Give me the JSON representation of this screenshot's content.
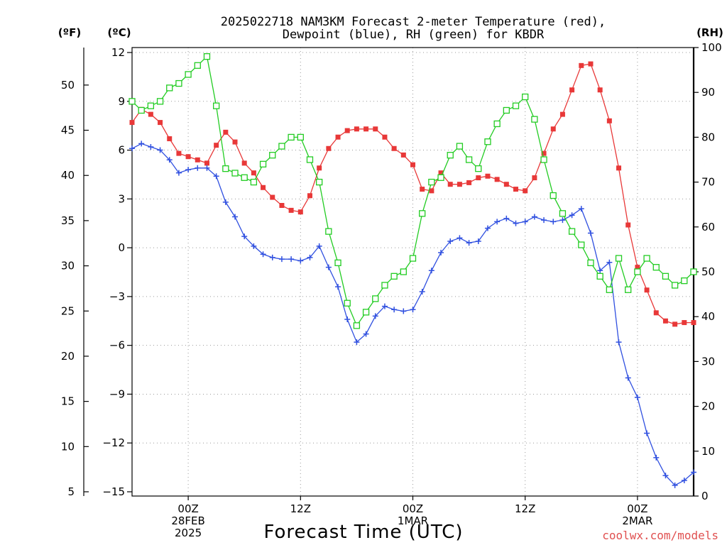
{
  "chart_data": {
    "type": "line",
    "title_lines": [
      "2025022718 NAM3KM Forecast 2-meter Temperature (red),",
      "Dewpoint (blue), RH (green) for KBDR"
    ],
    "xlabel": "Forecast Time (UTC)",
    "left_axis_unit_f": "(ºF)",
    "left_axis_unit_c": "(ºC)",
    "right_axis_unit": "(RH)",
    "credit": "coolwx.com/models",
    "x_hours": [
      0,
      1,
      2,
      3,
      4,
      5,
      6,
      7,
      8,
      9,
      10,
      11,
      12,
      13,
      14,
      15,
      16,
      17,
      18,
      19,
      20,
      21,
      22,
      23,
      24,
      25,
      26,
      27,
      28,
      29,
      30,
      31,
      32,
      33,
      34,
      35,
      36,
      37,
      38,
      39,
      40,
      41,
      42,
      43,
      44,
      45,
      46,
      47,
      48,
      49,
      50,
      51,
      52,
      53,
      54,
      55,
      56,
      57,
      58,
      59,
      60
    ],
    "x_range": [
      0,
      60
    ],
    "x_ticks": [
      {
        "hour": 6,
        "lines": [
          "00Z",
          "28FEB",
          "2025"
        ]
      },
      {
        "hour": 18,
        "lines": [
          "12Z"
        ]
      },
      {
        "hour": 30,
        "lines": [
          "00Z",
          "1MAR"
        ]
      },
      {
        "hour": 42,
        "lines": [
          "12Z"
        ]
      },
      {
        "hour": 54,
        "lines": [
          "00Z",
          "2MAR"
        ]
      }
    ],
    "celsius_range": [
      -15,
      12
    ],
    "celsius_ticks": [
      "12",
      "9",
      "6",
      "3",
      "0",
      "−3",
      "−6",
      "−9",
      "−12",
      "−15"
    ],
    "celsius_tick_values": [
      12,
      9,
      6,
      3,
      0,
      -3,
      -6,
      -9,
      -12,
      -15
    ],
    "fahrenheit_ticks": [
      "50",
      "45",
      "40",
      "35",
      "30",
      "25",
      "20",
      "15",
      "10",
      "5"
    ],
    "fahrenheit_tick_values": [
      50,
      45,
      40,
      35,
      30,
      25,
      20,
      15,
      10,
      5
    ],
    "rh_range": [
      0,
      100
    ],
    "rh_ticks": [
      "100",
      "90",
      "80",
      "70",
      "60",
      "50",
      "40",
      "30",
      "20",
      "10",
      "0"
    ],
    "rh_tick_values": [
      100,
      90,
      80,
      70,
      60,
      50,
      40,
      30,
      20,
      10,
      0
    ],
    "grid": true,
    "series": [
      {
        "name": "2-meter Temperature",
        "axis": "celsius",
        "color": "#e83838",
        "marker": "filled-square",
        "values": [
          7.7,
          8.5,
          8.2,
          7.7,
          6.7,
          5.8,
          5.6,
          5.4,
          5.2,
          6.3,
          7.1,
          6.5,
          5.2,
          4.6,
          3.7,
          3.1,
          2.6,
          2.3,
          2.2,
          3.2,
          4.9,
          6.1,
          6.8,
          7.2,
          7.3,
          7.3,
          7.3,
          6.8,
          6.1,
          5.7,
          5.1,
          3.6,
          3.5,
          4.6,
          3.9,
          3.9,
          4.0,
          4.3,
          4.4,
          4.2,
          3.9,
          3.6,
          3.5,
          4.3,
          5.8,
          7.3,
          8.2,
          9.7,
          11.2,
          11.3,
          9.7,
          7.8,
          4.9,
          1.4,
          -1.2,
          -2.6,
          -4.0,
          -4.5,
          -4.7,
          -4.6,
          -4.6
        ]
      },
      {
        "name": "Dewpoint",
        "axis": "celsius",
        "color": "#3050e0",
        "marker": "plus",
        "values": [
          6.1,
          6.4,
          6.2,
          6.0,
          5.4,
          4.6,
          4.8,
          4.9,
          4.9,
          4.4,
          2.8,
          1.9,
          0.7,
          0.1,
          -0.4,
          -0.6,
          -0.7,
          -0.7,
          -0.8,
          -0.6,
          0.1,
          -1.2,
          -2.4,
          -4.4,
          -5.8,
          -5.3,
          -4.2,
          -3.6,
          -3.8,
          -3.9,
          -3.8,
          -2.7,
          -1.4,
          -0.3,
          0.4,
          0.6,
          0.3,
          0.4,
          1.2,
          1.6,
          1.8,
          1.5,
          1.6,
          1.9,
          1.7,
          1.6,
          1.7,
          2.0,
          2.4,
          0.9,
          -1.4,
          -0.9,
          -5.8,
          -8.0,
          -9.2,
          -11.4,
          -12.9,
          -14.0,
          -14.6,
          -14.3,
          -13.8
        ]
      },
      {
        "name": "RH",
        "axis": "rh",
        "color": "#22cc22",
        "marker": "open-square",
        "values": [
          88,
          86,
          87,
          88,
          91,
          92,
          94,
          96,
          98,
          87,
          73,
          72,
          71,
          70,
          74,
          76,
          78,
          80,
          80,
          75,
          70,
          59,
          52,
          43,
          38,
          41,
          44,
          47,
          49,
          50,
          53,
          63,
          70,
          71,
          76,
          78,
          75,
          73,
          79,
          83,
          86,
          87,
          89,
          84,
          75,
          67,
          63,
          59,
          56,
          52,
          49,
          46,
          53,
          46,
          50,
          53,
          51,
          49,
          47,
          48,
          50
        ]
      }
    ]
  }
}
